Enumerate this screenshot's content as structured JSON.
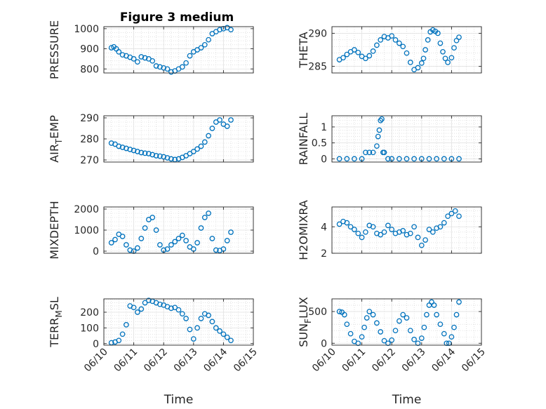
{
  "figure": {
    "title": "Figure 3 medium",
    "marker_color": "#0072bd"
  },
  "chart_data": [
    {
      "id": "pressure",
      "type": "scatter",
      "ylabel": "PRESSURE",
      "xlabel": "",
      "title": "Figure 3 medium",
      "xlim": [
        "06/10",
        "06/15"
      ],
      "ylim": [
        780,
        1010
      ],
      "yticks": [
        800,
        900,
        1000
      ],
      "x": [
        "06/10 06:00",
        "06/10 08:00",
        "06/10 10:00",
        "06/10 12:00",
        "06/10 15:00",
        "06/10 18:00",
        "06/10 21:00",
        "06/11 00:00",
        "06/11 03:00",
        "06/11 06:00",
        "06/11 09:00",
        "06/11 12:00",
        "06/11 15:00",
        "06/11 18:00",
        "06/11 21:00",
        "06/12 00:00",
        "06/12 03:00",
        "06/12 06:00",
        "06/12 09:00",
        "06/12 12:00",
        "06/12 15:00",
        "06/12 18:00",
        "06/12 21:00",
        "06/13 00:00",
        "06/13 03:00",
        "06/13 06:00",
        "06/13 09:00",
        "06/13 12:00",
        "06/13 15:00",
        "06/13 18:00",
        "06/13 21:00",
        "06/14 00:00",
        "06/14 03:00",
        "06/14 06:00"
      ],
      "y": [
        905,
        910,
        900,
        885,
        870,
        865,
        858,
        850,
        835,
        860,
        855,
        850,
        840,
        815,
        810,
        805,
        800,
        785,
        790,
        800,
        810,
        830,
        865,
        885,
        895,
        905,
        920,
        945,
        975,
        985,
        995,
        1000,
        1005,
        995
      ]
    },
    {
      "id": "theta",
      "type": "scatter",
      "ylabel": "THETA",
      "xlabel": "",
      "xlim": [
        "06/10",
        "06/15"
      ],
      "ylim": [
        284,
        291
      ],
      "yticks": [
        285,
        290
      ],
      "x": [
        "06/10 06:00",
        "06/10 09:00",
        "06/10 12:00",
        "06/10 15:00",
        "06/10 18:00",
        "06/10 21:00",
        "06/11 00:00",
        "06/11 03:00",
        "06/11 06:00",
        "06/11 09:00",
        "06/11 12:00",
        "06/11 15:00",
        "06/11 18:00",
        "06/11 21:00",
        "06/12 00:00",
        "06/12 03:00",
        "06/12 06:00",
        "06/12 09:00",
        "06/12 12:00",
        "06/12 15:00",
        "06/12 18:00",
        "06/12 21:00",
        "06/13 00:00",
        "06/13 01:30",
        "06/13 03:00",
        "06/13 05:00",
        "06/13 07:00",
        "06/13 09:00",
        "06/13 11:00",
        "06/13 13:00",
        "06/13 15:00",
        "06/13 17:00",
        "06/13 19:00",
        "06/13 21:00",
        "06/14 00:00",
        "06/14 02:00",
        "06/14 04:00",
        "06/14 06:00"
      ],
      "y": [
        286,
        286.3,
        286.8,
        287.2,
        287.5,
        287.1,
        286.5,
        286.2,
        286.6,
        287.3,
        288.2,
        289,
        289.5,
        289.3,
        289.6,
        289,
        288.5,
        288,
        287,
        285.6,
        284.5,
        284.8,
        285.5,
        286.2,
        287.5,
        289,
        290.2,
        290.5,
        290.3,
        290,
        288.5,
        287.2,
        286.2,
        285.6,
        286.3,
        287.8,
        288.9,
        289.4
      ]
    },
    {
      "id": "air_temp",
      "type": "scatter",
      "ylabel": "AIR_TEMP",
      "xlabel": "",
      "xlim": [
        "06/10",
        "06/15"
      ],
      "ylim": [
        269,
        291
      ],
      "yticks": [
        270,
        280,
        290
      ],
      "x": [
        "06/10 06:00",
        "06/10 09:00",
        "06/10 12:00",
        "06/10 15:00",
        "06/10 18:00",
        "06/10 21:00",
        "06/11 00:00",
        "06/11 03:00",
        "06/11 06:00",
        "06/11 09:00",
        "06/11 12:00",
        "06/11 15:00",
        "06/11 18:00",
        "06/11 21:00",
        "06/12 00:00",
        "06/12 03:00",
        "06/12 06:00",
        "06/12 09:00",
        "06/12 12:00",
        "06/12 15:00",
        "06/12 18:00",
        "06/12 21:00",
        "06/13 00:00",
        "06/13 03:00",
        "06/13 06:00",
        "06/13 09:00",
        "06/13 12:00",
        "06/13 15:00",
        "06/13 18:00",
        "06/13 21:00",
        "06/14 00:00",
        "06/14 03:00",
        "06/14 06:00"
      ],
      "y": [
        278,
        277.5,
        276.5,
        276,
        275.5,
        275,
        274.5,
        274,
        273.5,
        273.2,
        273,
        272.5,
        272,
        271.8,
        271.5,
        271,
        270.5,
        270.2,
        270.5,
        271.2,
        272,
        273,
        274,
        275.2,
        276.5,
        278.5,
        281.5,
        285,
        288,
        289,
        287,
        286,
        289
      ]
    },
    {
      "id": "rainfall",
      "type": "scatter",
      "ylabel": "RAINFALL",
      "xlabel": "",
      "xlim": [
        "06/10",
        "06/15"
      ],
      "ylim": [
        -0.1,
        1.35
      ],
      "yticks": [
        0,
        0.5,
        1
      ],
      "x": [
        "06/10 06:00",
        "06/10 12:00",
        "06/10 18:00",
        "06/11 00:00",
        "06/11 03:00",
        "06/11 06:00",
        "06/11 09:00",
        "06/11 12:00",
        "06/11 13:00",
        "06/11 14:00",
        "06/11 15:00",
        "06/11 16:00",
        "06/11 17:00",
        "06/11 18:00",
        "06/11 21:00",
        "06/12 00:00",
        "06/12 06:00",
        "06/12 12:00",
        "06/12 18:00",
        "06/13 00:00",
        "06/13 06:00",
        "06/13 12:00",
        "06/13 18:00",
        "06/14 00:00",
        "06/14 06:00"
      ],
      "y": [
        0,
        0,
        0,
        0,
        0.2,
        0.2,
        0.2,
        0.4,
        0.7,
        0.9,
        1.2,
        1.25,
        0.2,
        0.2,
        0,
        0,
        0,
        0,
        0,
        0,
        0,
        0,
        0,
        0,
        0
      ]
    },
    {
      "id": "mixdepth",
      "type": "scatter",
      "ylabel": "MIXDEPTH",
      "xlabel": "",
      "xlim": [
        "06/10",
        "06/15"
      ],
      "ylim": [
        -100,
        2100
      ],
      "yticks": [
        0,
        1000,
        2000
      ],
      "x": [
        "06/10 06:00",
        "06/10 09:00",
        "06/10 12:00",
        "06/10 15:00",
        "06/10 18:00",
        "06/10 21:00",
        "06/11 00:00",
        "06/11 03:00",
        "06/11 06:00",
        "06/11 09:00",
        "06/11 12:00",
        "06/11 15:00",
        "06/11 18:00",
        "06/11 21:00",
        "06/12 00:00",
        "06/12 03:00",
        "06/12 06:00",
        "06/12 09:00",
        "06/12 12:00",
        "06/12 15:00",
        "06/12 18:00",
        "06/12 21:00",
        "06/13 00:00",
        "06/13 03:00",
        "06/13 06:00",
        "06/13 09:00",
        "06/13 12:00",
        "06/13 15:00",
        "06/13 18:00",
        "06/13 21:00",
        "06/14 00:00",
        "06/14 03:00",
        "06/14 06:00"
      ],
      "y": [
        400,
        550,
        800,
        700,
        300,
        50,
        0,
        150,
        600,
        1100,
        1500,
        1600,
        1000,
        300,
        50,
        100,
        300,
        450,
        600,
        750,
        500,
        200,
        100,
        400,
        1100,
        1600,
        1800,
        600,
        50,
        30,
        100,
        500,
        900
      ]
    },
    {
      "id": "h2omixra",
      "type": "scatter",
      "ylabel": "H2OMIXRA",
      "xlabel": "",
      "xlim": [
        "06/10",
        "06/15"
      ],
      "ylim": [
        2,
        5.5
      ],
      "yticks": [
        2,
        4
      ],
      "x": [
        "06/10 06:00",
        "06/10 09:00",
        "06/10 12:00",
        "06/10 15:00",
        "06/10 18:00",
        "06/10 21:00",
        "06/11 00:00",
        "06/11 03:00",
        "06/11 06:00",
        "06/11 09:00",
        "06/11 12:00",
        "06/11 15:00",
        "06/11 18:00",
        "06/11 21:00",
        "06/12 00:00",
        "06/12 03:00",
        "06/12 06:00",
        "06/12 09:00",
        "06/12 12:00",
        "06/12 15:00",
        "06/12 18:00",
        "06/12 21:00",
        "06/13 00:00",
        "06/13 03:00",
        "06/13 06:00",
        "06/13 09:00",
        "06/13 12:00",
        "06/13 15:00",
        "06/13 18:00",
        "06/13 21:00",
        "06/14 00:00",
        "06/14 03:00",
        "06/14 06:00"
      ],
      "y": [
        4.2,
        4.4,
        4.3,
        4.0,
        3.8,
        3.5,
        3.2,
        3.6,
        4.1,
        4.0,
        3.5,
        3.4,
        3.6,
        4.1,
        3.8,
        3.5,
        3.6,
        3.7,
        3.4,
        3.5,
        4.0,
        3.2,
        2.6,
        3.0,
        3.8,
        3.6,
        3.9,
        4.0,
        4.3,
        4.8,
        5.0,
        5.2,
        4.8
      ]
    },
    {
      "id": "terr_msl",
      "type": "scatter",
      "ylabel": "TERR_MSL",
      "xlabel": "Time",
      "xlim": [
        "06/10",
        "06/15"
      ],
      "ylim": [
        -10,
        285
      ],
      "yticks": [
        0,
        100,
        200
      ],
      "xticks": [
        "06/10",
        "06/11",
        "06/12",
        "06/13",
        "06/14",
        "06/15"
      ],
      "x": [
        "06/10 06:00",
        "06/10 09:00",
        "06/10 12:00",
        "06/10 15:00",
        "06/10 18:00",
        "06/10 21:00",
        "06/11 00:00",
        "06/11 03:00",
        "06/11 06:00",
        "06/11 09:00",
        "06/11 12:00",
        "06/11 15:00",
        "06/11 18:00",
        "06/11 21:00",
        "06/12 00:00",
        "06/12 03:00",
        "06/12 06:00",
        "06/12 09:00",
        "06/12 12:00",
        "06/12 15:00",
        "06/12 18:00",
        "06/12 21:00",
        "06/13 00:00",
        "06/13 03:00",
        "06/13 06:00",
        "06/13 09:00",
        "06/13 12:00",
        "06/13 15:00",
        "06/13 18:00",
        "06/13 21:00",
        "06/14 00:00",
        "06/14 03:00",
        "06/14 06:00"
      ],
      "y": [
        5,
        10,
        20,
        60,
        120,
        240,
        230,
        200,
        220,
        260,
        275,
        270,
        260,
        250,
        245,
        235,
        225,
        230,
        215,
        190,
        160,
        90,
        30,
        100,
        160,
        190,
        180,
        140,
        100,
        80,
        60,
        40,
        20
      ]
    },
    {
      "id": "sun_flux",
      "type": "scatter",
      "ylabel": "SUN_FLUX",
      "xlabel": "Time",
      "xlim": [
        "06/10",
        "06/15"
      ],
      "ylim": [
        -30,
        700
      ],
      "yticks": [
        0,
        500
      ],
      "xticks": [
        "06/10",
        "06/11",
        "06/12",
        "06/13",
        "06/14",
        "06/15"
      ],
      "x": [
        "06/10 06:00",
        "06/10 08:00",
        "06/10 10:00",
        "06/10 12:00",
        "06/10 15:00",
        "06/10 18:00",
        "06/10 21:00",
        "06/11 00:00",
        "06/11 02:00",
        "06/11 04:00",
        "06/11 06:00",
        "06/11 09:00",
        "06/11 12:00",
        "06/11 15:00",
        "06/11 18:00",
        "06/11 21:00",
        "06/12 00:00",
        "06/12 03:00",
        "06/12 06:00",
        "06/12 09:00",
        "06/12 12:00",
        "06/12 15:00",
        "06/12 18:00",
        "06/12 21:00",
        "06/13 00:00",
        "06/13 02:00",
        "06/13 04:00",
        "06/13 06:00",
        "06/13 08:00",
        "06/13 10:00",
        "06/13 12:00",
        "06/13 15:00",
        "06/13 18:00",
        "06/13 20:00",
        "06/13 22:00",
        "06/14 00:00",
        "06/14 02:00",
        "06/14 04:00",
        "06/14 06:00"
      ],
      "y": [
        500,
        490,
        450,
        300,
        150,
        30,
        0,
        100,
        250,
        400,
        500,
        450,
        320,
        180,
        40,
        0,
        50,
        200,
        350,
        450,
        400,
        200,
        60,
        0,
        80,
        250,
        450,
        600,
        650,
        600,
        450,
        300,
        150,
        0,
        0,
        100,
        250,
        450,
        650
      ]
    }
  ]
}
